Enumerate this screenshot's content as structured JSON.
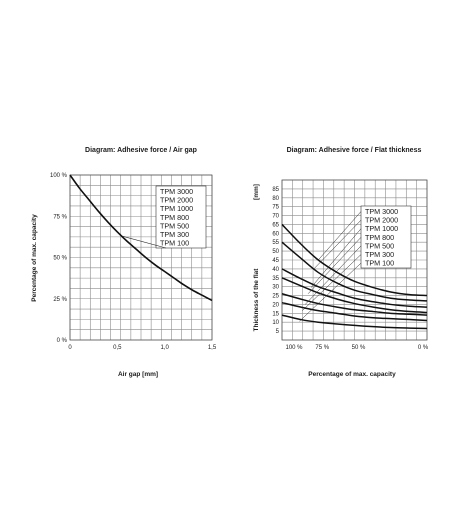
{
  "chart_data": [
    {
      "type": "line",
      "title": "Diagram: Adhesive force / Air gap",
      "xlabel": "Air gap [mm]",
      "ylabel": "Percentage of max. capacity",
      "xlim": [
        0,
        1.5
      ],
      "ylim": [
        0,
        100
      ],
      "x_ticks": [
        "0",
        "0,5",
        "1,0",
        "1,5"
      ],
      "y_ticks": [
        "0 %",
        "25 %",
        "50 %",
        "75 %",
        "100 %"
      ],
      "grid": true,
      "legend": [
        "TPM 3000",
        "TPM 2000",
        "TPM 1000",
        "TPM 800",
        "TPM 500",
        "TPM 300",
        "TPM 100"
      ],
      "legend_placement": "top-right",
      "series": [
        {
          "x": [
            0,
            0.1,
            0.2,
            0.3,
            0.4,
            0.5,
            0.6,
            0.7,
            0.8,
            0.9,
            1.0,
            1.1,
            1.2,
            1.3,
            1.4,
            1.5
          ],
          "y": [
            100,
            92,
            85,
            78,
            71.5,
            65.5,
            60,
            55,
            50,
            45.5,
            41.5,
            37.5,
            33.5,
            30,
            27,
            24
          ]
        }
      ]
    },
    {
      "type": "line",
      "title": "Diagram: Adhesive force / Flat thickness",
      "xlabel": "Percentage of max. capacity",
      "ylabel": "Thickness of the flat",
      "yunit": "[mm]",
      "xlim": [
        100,
        0
      ],
      "ylim": [
        0,
        90
      ],
      "x_ticks": [
        "100 %",
        "75 %",
        "50 %",
        "0 %"
      ],
      "y_ticks": [
        "5",
        "10",
        "15",
        "20",
        "25",
        "30",
        "35",
        "40",
        "45",
        "50",
        "55",
        "60",
        "65",
        "70",
        "75",
        "80",
        "85"
      ],
      "grid": true,
      "legend": [
        "TPM 3000",
        "TPM 2000",
        "TPM 1000",
        "TPM 800",
        "TPM 500",
        "TPM 300",
        "TPM 100"
      ],
      "legend_placement": "top-right",
      "series": [
        {
          "name": "TPM 3000",
          "x": [
            100,
            87,
            75,
            62,
            50,
            37,
            25,
            12,
            0
          ],
          "y": [
            65,
            54,
            45,
            38,
            33,
            29.5,
            27,
            25.5,
            25
          ]
        },
        {
          "name": "TPM 2000",
          "x": [
            100,
            87,
            75,
            62,
            50,
            37,
            25,
            12,
            0
          ],
          "y": [
            55,
            46,
            38,
            32,
            28,
            25.5,
            23.5,
            22.5,
            22
          ]
        },
        {
          "name": "TPM 1000",
          "x": [
            100,
            87,
            75,
            62,
            50,
            37,
            25,
            12,
            0
          ],
          "y": [
            40,
            34.5,
            30,
            26.5,
            23.5,
            21.5,
            20,
            19,
            18.5
          ]
        },
        {
          "name": "TPM 800",
          "x": [
            100,
            87,
            75,
            62,
            50,
            37,
            25,
            12,
            0
          ],
          "y": [
            35,
            30.5,
            26.5,
            23,
            20.5,
            18.5,
            17,
            16,
            15.5
          ]
        },
        {
          "name": "TPM 500",
          "x": [
            100,
            87,
            75,
            62,
            50,
            37,
            25,
            12,
            0
          ],
          "y": [
            26,
            23,
            20.5,
            18.5,
            17,
            16,
            15,
            14.5,
            14
          ]
        },
        {
          "name": "TPM 300",
          "x": [
            100,
            87,
            75,
            62,
            50,
            37,
            25,
            12,
            0
          ],
          "y": [
            21,
            18.5,
            16.5,
            15,
            13.5,
            12.5,
            12,
            11.5,
            11
          ]
        },
        {
          "name": "TPM 100",
          "x": [
            100,
            87,
            75,
            62,
            50,
            37,
            25,
            12,
            0
          ],
          "y": [
            14,
            11.5,
            10,
            9,
            8.2,
            7.5,
            7,
            6.7,
            6.5
          ]
        }
      ]
    }
  ]
}
